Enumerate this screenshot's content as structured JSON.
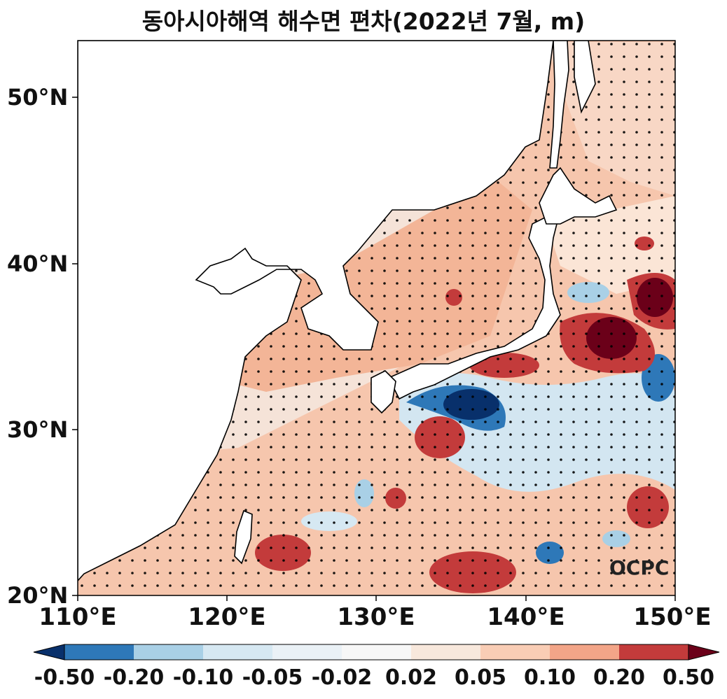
{
  "title": "동아시아해역 해수면 편차(2022년 7월, m)",
  "y_ticks": [
    "50°N",
    "40°N",
    "30°N",
    "20°N"
  ],
  "x_ticks": [
    "110°E",
    "120°E",
    "130°E",
    "140°E",
    "150°E"
  ],
  "colorbar": {
    "labels": [
      "-0.50",
      "-0.20",
      "-0.10",
      "-0.05",
      "-0.02",
      "0.02",
      "0.05",
      "0.10",
      "0.20",
      "0.50"
    ],
    "colors": [
      "#08306b",
      "#2e78b8",
      "#a9d0e6",
      "#d6e8f2",
      "#eaf1f6",
      "#f7f7f7",
      "#f8e8dc",
      "#f9cdb5",
      "#f3a588",
      "#c33b3b",
      "#6b0019"
    ]
  },
  "logo_text": "OCPC",
  "map": {
    "extent": {
      "lon": [
        110,
        150
      ],
      "lat": [
        20,
        53.5
      ]
    },
    "land_color": "#ffffff",
    "coastline_color": "#000000"
  }
}
